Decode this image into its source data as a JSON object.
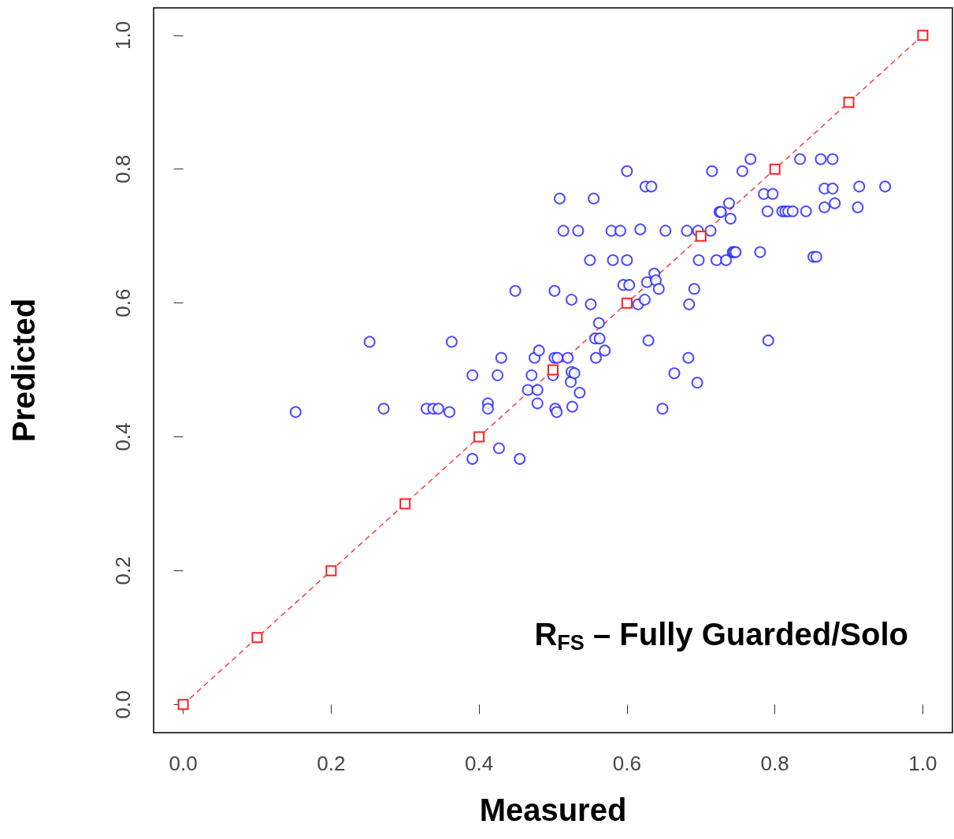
{
  "chart_data": {
    "type": "scatter",
    "xlabel": "Measured",
    "ylabel": "Predicted",
    "annotations": [
      "R$_{FS}$ – Fully Guarded/Solo"
    ],
    "xlim": [
      -0.04,
      1.04
    ],
    "ylim": [
      -0.042,
      1.041
    ],
    "xticks": [
      {
        "value": 0,
        "label": "0.0"
      },
      {
        "value": 0.2,
        "label": "0.2"
      },
      {
        "value": 0.4,
        "label": "0.4"
      },
      {
        "value": 0.6,
        "label": "0.6"
      },
      {
        "value": 0.8,
        "label": "0.8"
      },
      {
        "value": 1,
        "label": "1.0"
      }
    ],
    "yticks": [
      {
        "value": 0,
        "label": "0.0"
      },
      {
        "value": 0.2,
        "label": "0.2"
      },
      {
        "value": 0.4,
        "label": "0.4"
      },
      {
        "value": 0.6,
        "label": "0.6"
      },
      {
        "value": 0.8,
        "label": "0.8"
      },
      {
        "value": 1,
        "label": "1.0"
      }
    ],
    "grid": false,
    "series": [
      {
        "color": "#2020ff",
        "marker": "circle",
        "x": [
          0.152,
          0.252,
          0.271,
          0.329,
          0.338,
          0.345,
          0.36,
          0.363,
          0.391,
          0.391,
          0.412,
          0.412,
          0.425,
          0.427,
          0.43,
          0.449,
          0.455,
          0.466,
          0.471,
          0.475,
          0.479,
          0.479,
          0.481,
          0.502,
          0.5,
          0.502,
          0.506,
          0.503,
          0.505,
          0.509,
          0.514,
          0.52,
          0.524,
          0.525,
          0.525,
          0.526,
          0.529,
          0.534,
          0.536,
          0.55,
          0.551,
          0.555,
          0.557,
          0.558,
          0.562,
          0.563,
          0.57,
          0.579,
          0.581,
          0.591,
          0.595,
          0.6,
          0.6,
          0.603,
          0.615,
          0.618,
          0.624,
          0.625,
          0.627,
          0.629,
          0.633,
          0.637,
          0.639,
          0.643,
          0.648,
          0.652,
          0.664,
          0.681,
          0.683,
          0.684,
          0.691,
          0.695,
          0.696,
          0.697,
          0.713,
          0.715,
          0.721,
          0.725,
          0.727,
          0.734,
          0.738,
          0.74,
          0.743,
          0.745,
          0.747,
          0.756,
          0.767,
          0.78,
          0.785,
          0.79,
          0.791,
          0.797,
          0.81,
          0.814,
          0.818,
          0.824,
          0.834,
          0.842,
          0.852,
          0.856,
          0.862,
          0.867,
          0.867,
          0.878,
          0.878,
          0.881,
          0.912,
          0.914,
          0.949
        ],
        "values": [
          0.437,
          0.542,
          0.442,
          0.442,
          0.442,
          0.442,
          0.437,
          0.542,
          0.492,
          0.367,
          0.45,
          0.442,
          0.492,
          0.383,
          0.518,
          0.618,
          0.367,
          0.47,
          0.492,
          0.518,
          0.47,
          0.45,
          0.529,
          0.618,
          0.492,
          0.518,
          0.518,
          0.442,
          0.437,
          0.756,
          0.708,
          0.518,
          0.482,
          0.605,
          0.497,
          0.445,
          0.495,
          0.708,
          0.466,
          0.664,
          0.598,
          0.756,
          0.547,
          0.518,
          0.57,
          0.547,
          0.529,
          0.708,
          0.664,
          0.708,
          0.627,
          0.797,
          0.664,
          0.627,
          0.598,
          0.71,
          0.605,
          0.774,
          0.631,
          0.544,
          0.774,
          0.644,
          0.634,
          0.621,
          0.442,
          0.708,
          0.495,
          0.708,
          0.518,
          0.598,
          0.621,
          0.481,
          0.708,
          0.664,
          0.708,
          0.797,
          0.664,
          0.736,
          0.736,
          0.664,
          0.749,
          0.726,
          0.676,
          0.676,
          0.676,
          0.797,
          0.815,
          0.676,
          0.763,
          0.737,
          0.544,
          0.763,
          0.737,
          0.737,
          0.737,
          0.737,
          0.815,
          0.737,
          0.669,
          0.669,
          0.815,
          0.771,
          0.743,
          0.815,
          0.771,
          0.749,
          0.743,
          0.774,
          0.774
        ]
      },
      {
        "type": "line",
        "color": "#ff2020",
        "marker": "square",
        "line_style": "dashed",
        "x": [
          0,
          0.1,
          0.2,
          0.3,
          0.4,
          0.5,
          0.6,
          0.7,
          0.8,
          0.9,
          1
        ],
        "values": [
          0,
          0.1,
          0.2,
          0.3,
          0.4,
          0.5,
          0.6,
          0.7,
          0.8,
          0.9,
          1
        ]
      }
    ]
  }
}
